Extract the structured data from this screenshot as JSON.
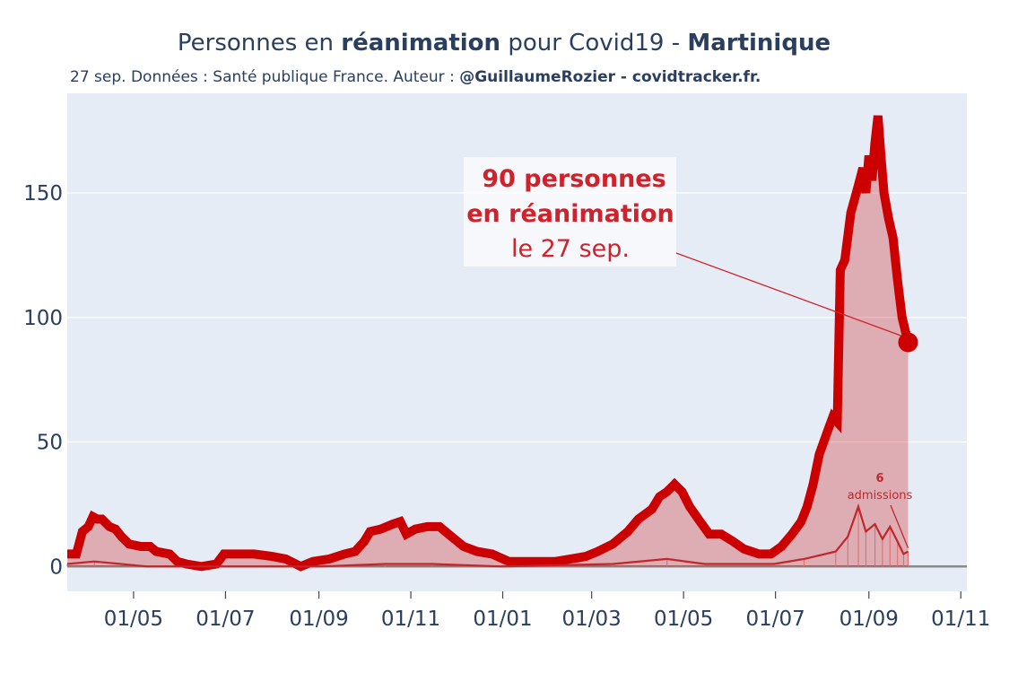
{
  "title_part1": "Personnes en ",
  "title_bold1": "réanimation",
  "title_part2": " pour Covid19 - ",
  "title_bold2": "Martinique",
  "subtitle_part1": "27 sep. Données : Santé publique France. Auteur : ",
  "subtitle_bold": "@GuillaumeRozier - covidtracker.fr.",
  "annotation": {
    "line1": "90 personnes",
    "line2": "en réanimation",
    "line3": "le 27 sep."
  },
  "admissions_annotation": {
    "value": "6",
    "label": "admissions"
  },
  "colors": {
    "main_line": "#cc0000",
    "fill": "rgba(204,0,0,0.27)",
    "plot_bg": "#e5ecf6",
    "grid": "#ffffff",
    "text": "#2a3f5f"
  },
  "chart_data": {
    "type": "area",
    "title": "Personnes en réanimation pour Covid19 - Martinique",
    "xlabel": "",
    "ylabel": "",
    "x_range": [
      "2020-03-18",
      "2021-11-05"
    ],
    "y_range": [
      -10,
      190
    ],
    "x_ticks": [
      {
        "date": "2020-05-01",
        "label": "01/05"
      },
      {
        "date": "2020-07-01",
        "label": "01/07"
      },
      {
        "date": "2020-09-01",
        "label": "01/09"
      },
      {
        "date": "2020-11-01",
        "label": "01/11"
      },
      {
        "date": "2021-01-01",
        "label": "01/01"
      },
      {
        "date": "2021-03-01",
        "label": "01/03"
      },
      {
        "date": "2021-05-01",
        "label": "01/05"
      },
      {
        "date": "2021-07-01",
        "label": "01/07"
      },
      {
        "date": "2021-09-01",
        "label": "01/09"
      },
      {
        "date": "2021-11-01",
        "label": "01/11"
      }
    ],
    "y_ticks": [
      0,
      50,
      100,
      150
    ],
    "series": [
      {
        "name": "Personnes en réanimation",
        "points": [
          [
            "2020-03-18",
            5
          ],
          [
            "2020-03-24",
            5
          ],
          [
            "2020-03-28",
            14
          ],
          [
            "2020-04-01",
            16
          ],
          [
            "2020-04-04",
            20
          ],
          [
            "2020-04-07",
            19
          ],
          [
            "2020-04-10",
            19
          ],
          [
            "2020-04-15",
            16
          ],
          [
            "2020-04-19",
            15
          ],
          [
            "2020-04-23",
            12
          ],
          [
            "2020-04-28",
            9
          ],
          [
            "2020-05-06",
            8
          ],
          [
            "2020-05-12",
            8
          ],
          [
            "2020-05-16",
            6
          ],
          [
            "2020-05-25",
            5
          ],
          [
            "2020-05-30",
            2
          ],
          [
            "2020-06-05",
            1
          ],
          [
            "2020-06-15",
            0
          ],
          [
            "2020-06-25",
            1
          ],
          [
            "2020-06-30",
            5
          ],
          [
            "2020-07-10",
            5
          ],
          [
            "2020-07-20",
            5
          ],
          [
            "2020-08-01",
            4
          ],
          [
            "2020-08-10",
            3
          ],
          [
            "2020-08-20",
            0
          ],
          [
            "2020-08-28",
            2
          ],
          [
            "2020-09-08",
            3
          ],
          [
            "2020-09-18",
            5
          ],
          [
            "2020-09-25",
            6
          ],
          [
            "2020-10-01",
            10
          ],
          [
            "2020-10-05",
            14
          ],
          [
            "2020-10-12",
            15
          ],
          [
            "2020-10-20",
            17
          ],
          [
            "2020-10-25",
            18
          ],
          [
            "2020-10-29",
            13
          ],
          [
            "2020-11-04",
            15
          ],
          [
            "2020-11-12",
            16
          ],
          [
            "2020-11-20",
            16
          ],
          [
            "2020-11-28",
            12
          ],
          [
            "2020-12-06",
            8
          ],
          [
            "2020-12-15",
            6
          ],
          [
            "2020-12-25",
            5
          ],
          [
            "2021-01-05",
            2
          ],
          [
            "2021-01-20",
            2
          ],
          [
            "2021-02-05",
            2
          ],
          [
            "2021-02-15",
            3
          ],
          [
            "2021-02-25",
            4
          ],
          [
            "2021-03-05",
            6
          ],
          [
            "2021-03-15",
            9
          ],
          [
            "2021-03-25",
            14
          ],
          [
            "2021-04-01",
            19
          ],
          [
            "2021-04-10",
            23
          ],
          [
            "2021-04-15",
            28
          ],
          [
            "2021-04-20",
            30
          ],
          [
            "2021-04-25",
            33
          ],
          [
            "2021-04-30",
            30
          ],
          [
            "2021-05-05",
            24
          ],
          [
            "2021-05-12",
            18
          ],
          [
            "2021-05-18",
            13
          ],
          [
            "2021-05-26",
            13
          ],
          [
            "2021-06-03",
            10
          ],
          [
            "2021-06-10",
            7
          ],
          [
            "2021-06-20",
            5
          ],
          [
            "2021-06-28",
            5
          ],
          [
            "2021-07-05",
            8
          ],
          [
            "2021-07-12",
            13
          ],
          [
            "2021-07-18",
            18
          ],
          [
            "2021-07-22",
            24
          ],
          [
            "2021-07-26",
            33
          ],
          [
            "2021-07-30",
            45
          ],
          [
            "2021-08-05",
            55
          ],
          [
            "2021-08-08",
            60
          ],
          [
            "2021-08-11",
            58
          ],
          [
            "2021-08-13",
            119
          ],
          [
            "2021-08-16",
            123
          ],
          [
            "2021-08-20",
            142
          ],
          [
            "2021-08-25",
            153
          ],
          [
            "2021-08-28",
            160
          ],
          [
            "2021-08-30",
            150
          ],
          [
            "2021-09-01",
            165
          ],
          [
            "2021-09-03",
            155
          ],
          [
            "2021-09-05",
            170
          ],
          [
            "2021-09-07",
            181
          ],
          [
            "2021-09-09",
            165
          ],
          [
            "2021-09-11",
            150
          ],
          [
            "2021-09-14",
            140
          ],
          [
            "2021-09-17",
            132
          ],
          [
            "2021-09-20",
            115
          ],
          [
            "2021-09-23",
            100
          ],
          [
            "2021-09-27",
            90
          ]
        ]
      },
      {
        "name": "Admissions",
        "points": [
          [
            "2020-03-18",
            1
          ],
          [
            "2020-04-05",
            2
          ],
          [
            "2020-05-10",
            0
          ],
          [
            "2020-09-01",
            0
          ],
          [
            "2020-10-15",
            1
          ],
          [
            "2020-11-15",
            1
          ],
          [
            "2021-01-01",
            0
          ],
          [
            "2021-03-15",
            1
          ],
          [
            "2021-04-20",
            3
          ],
          [
            "2021-05-15",
            1
          ],
          [
            "2021-06-30",
            1
          ],
          [
            "2021-07-20",
            3
          ],
          [
            "2021-08-10",
            6
          ],
          [
            "2021-08-18",
            12
          ],
          [
            "2021-08-25",
            24
          ],
          [
            "2021-08-30",
            14
          ],
          [
            "2021-09-05",
            17
          ],
          [
            "2021-09-10",
            11
          ],
          [
            "2021-09-15",
            16
          ],
          [
            "2021-09-20",
            10
          ],
          [
            "2021-09-24",
            5
          ],
          [
            "2021-09-27",
            6
          ]
        ]
      }
    ],
    "last_value": {
      "date": "2021-09-27",
      "value": 90
    }
  }
}
